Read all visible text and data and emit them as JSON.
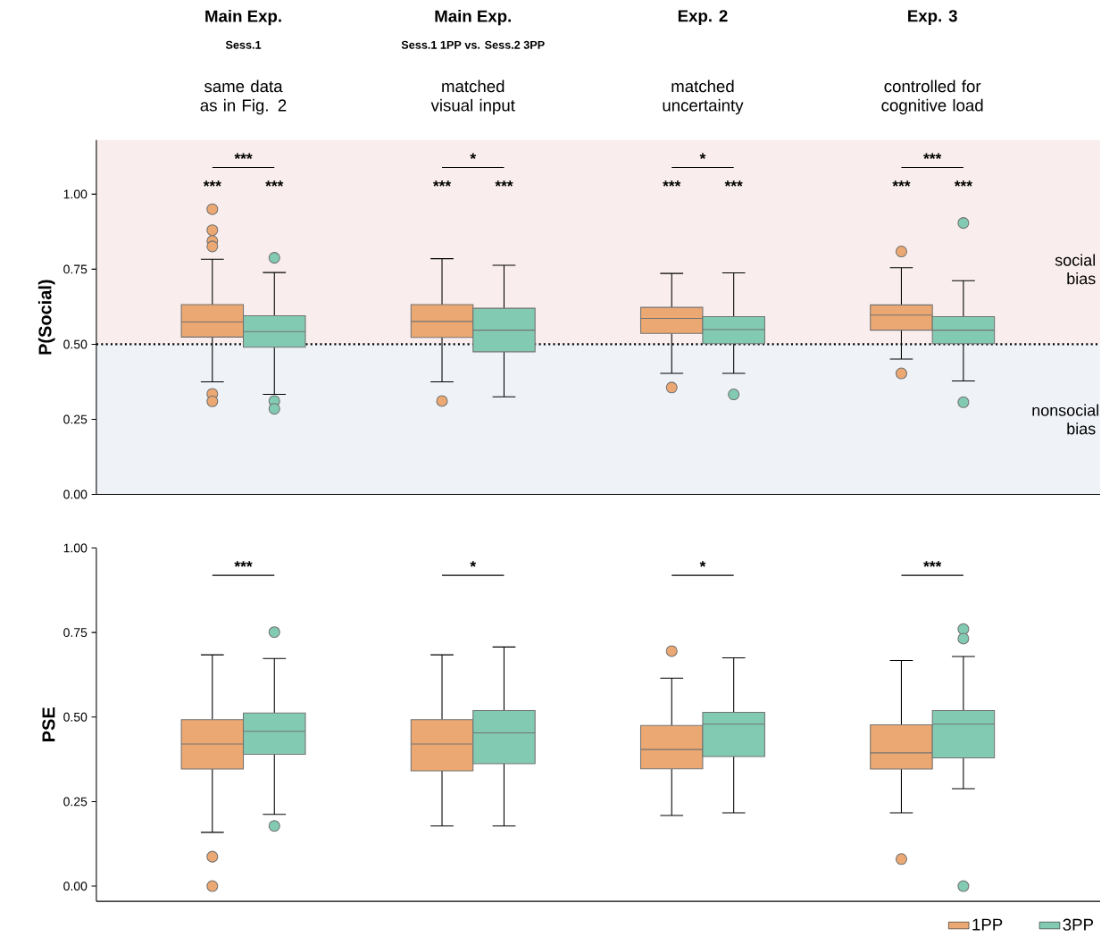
{
  "chart_data": [
    {
      "type": "box",
      "categories": [
        "Main Exp.",
        "Main Exp.",
        "Exp. 2",
        "Exp. 3"
      ],
      "ylabel": "P(Social)",
      "ylim": [
        0,
        1.18
      ],
      "yticks": [
        {
          "value": 0,
          "label": "0.00"
        },
        {
          "value": 0.25,
          "label": "0.25"
        },
        {
          "value": 0.5,
          "label": "0.50"
        },
        {
          "value": 0.75,
          "label": "0.75"
        },
        {
          "value": 1,
          "label": "1.00"
        }
      ],
      "marker": "circle",
      "series": [
        {
          "color": "#eca872",
          "boxes": [
            {
              "low": 0.375,
              "q1": 0.524,
              "median": 0.574,
              "q3": 0.632,
              "high": 0.783,
              "outliers": [
                0.95,
                0.88,
                0.844,
                0.826,
                0.335,
                0.31
              ]
            },
            {
              "low": 0.375,
              "q1": 0.523,
              "median": 0.576,
              "q3": 0.632,
              "high": 0.785,
              "outliers": [
                0.311
              ]
            },
            {
              "low": 0.403,
              "q1": 0.536,
              "median": 0.586,
              "q3": 0.623,
              "high": 0.736,
              "outliers": [
                0.356
              ]
            },
            {
              "low": 0.451,
              "q1": 0.547,
              "median": 0.597,
              "q3": 0.631,
              "high": 0.755,
              "outliers": [
                0.809,
                0.403
              ]
            }
          ]
        },
        {
          "color": "#82cbb2",
          "boxes": [
            {
              "low": 0.333,
              "q1": 0.49,
              "median": 0.542,
              "q3": 0.595,
              "high": 0.739,
              "outliers": [
                0.788,
                0.311,
                0.285
              ]
            },
            {
              "low": 0.325,
              "q1": 0.475,
              "median": 0.547,
              "q3": 0.62,
              "high": 0.763
            },
            {
              "low": 0.403,
              "q1": 0.502,
              "median": 0.549,
              "q3": 0.592,
              "high": 0.738,
              "outliers": [
                0.333
              ]
            },
            {
              "low": 0.378,
              "q1": 0.502,
              "median": 0.547,
              "q3": 0.592,
              "high": 0.712,
              "outliers": [
                0.904,
                0.307
              ]
            }
          ]
        }
      ],
      "ref_lines": [
        {
          "axis": "y",
          "value": 0.5,
          "line_style": "dotted"
        }
      ],
      "bands": [
        {
          "axis": "y",
          "from": 0.5,
          "to": 1.18,
          "label": "social bias",
          "color": "#f9eeed"
        },
        {
          "axis": "y",
          "from": 0,
          "to": 0.5,
          "label": "nonsocial bias",
          "color": "#eff3f8"
        }
      ],
      "annotations": [
        "Sess.1",
        "Sess.1 1PP vs. Sess.2 3PP",
        "same data as in Fig. 2",
        "matched visual input",
        "matched uncertainty",
        "controlled for cognitive load",
        "***",
        "*",
        "*",
        "***",
        "***",
        "***",
        "***",
        "***",
        "***",
        "***",
        "***",
        "***"
      ]
    },
    {
      "type": "box",
      "categories": [
        null,
        null,
        null,
        null
      ],
      "ylabel": "PSE",
      "ylim": [
        -0.045,
        1.0
      ],
      "tick_labels": "y",
      "yticks": [
        {
          "value": 0,
          "label": "0.00"
        },
        {
          "value": 0.25,
          "label": "0.25"
        },
        {
          "value": 0.5,
          "label": "0.50"
        },
        {
          "value": 0.75,
          "label": "0.75"
        },
        {
          "value": 1,
          "label": "1.00"
        }
      ],
      "marker": "circle",
      "legend": "bottom right",
      "series": [
        {
          "name": "1PP",
          "color": "#eca872",
          "boxes": [
            {
              "low": 0.159,
              "q1": 0.346,
              "median": 0.42,
              "q3": 0.492,
              "high": 0.684,
              "outliers": [
                0.087,
                0.0
              ]
            },
            {
              "low": 0.178,
              "q1": 0.341,
              "median": 0.42,
              "q3": 0.492,
              "high": 0.684
            },
            {
              "low": 0.209,
              "q1": 0.347,
              "median": 0.404,
              "q3": 0.475,
              "high": 0.615,
              "outliers": [
                0.695
              ]
            },
            {
              "low": 0.217,
              "q1": 0.346,
              "median": 0.394,
              "q3": 0.477,
              "high": 0.667,
              "outliers": [
                0.08
              ]
            }
          ]
        },
        {
          "name": "3PP",
          "color": "#82cbb2",
          "boxes": [
            {
              "low": 0.212,
              "q1": 0.39,
              "median": 0.458,
              "q3": 0.512,
              "high": 0.673,
              "outliers": [
                0.751,
                0.178
              ]
            },
            {
              "low": 0.178,
              "q1": 0.362,
              "median": 0.453,
              "q3": 0.519,
              "high": 0.707
            },
            {
              "low": 0.217,
              "q1": 0.383,
              "median": 0.479,
              "q3": 0.514,
              "high": 0.675
            },
            {
              "low": 0.288,
              "q1": 0.379,
              "median": 0.479,
              "q3": 0.519,
              "high": 0.679,
              "outliers": [
                0.76,
                0.732,
                0.0
              ]
            }
          ]
        }
      ],
      "annotations": [
        "***",
        "*",
        "*",
        "***"
      ]
    }
  ]
}
